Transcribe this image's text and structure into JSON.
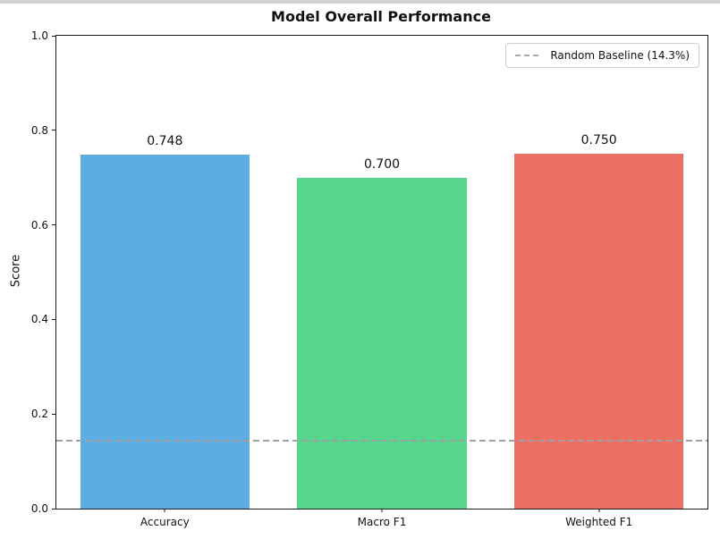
{
  "window": {
    "top_strip_color": "#d0d0d0"
  },
  "chart_data": {
    "type": "bar",
    "title": "Model Overall Performance",
    "xlabel": "",
    "ylabel": "Score",
    "ylim": [
      0.0,
      1.0
    ],
    "grid": false,
    "background": "#ffffff",
    "categories": [
      "Accuracy",
      "Macro F1",
      "Weighted F1"
    ],
    "values": [
      0.748,
      0.7,
      0.75
    ],
    "value_labels": [
      "0.748",
      "0.700",
      "0.750"
    ],
    "bar_colors": [
      "#5DADE2",
      "#58D68D",
      "#EC7063"
    ],
    "y_ticks": {
      "values": [
        0.0,
        0.2,
        0.4,
        0.6,
        0.8,
        1.0
      ],
      "labels": [
        "0.0",
        "0.2",
        "0.4",
        "0.6",
        "0.8",
        "1.0"
      ]
    },
    "baseline": {
      "value": 0.143,
      "label": "Random Baseline (14.3%)",
      "color": "#a0a0a0",
      "style": "dashed"
    },
    "legend": {
      "position": "upper right",
      "entries": [
        {
          "label": "Random Baseline (14.3%)",
          "line_color": "#a0a0a0",
          "line_style": "dashed"
        }
      ]
    }
  }
}
